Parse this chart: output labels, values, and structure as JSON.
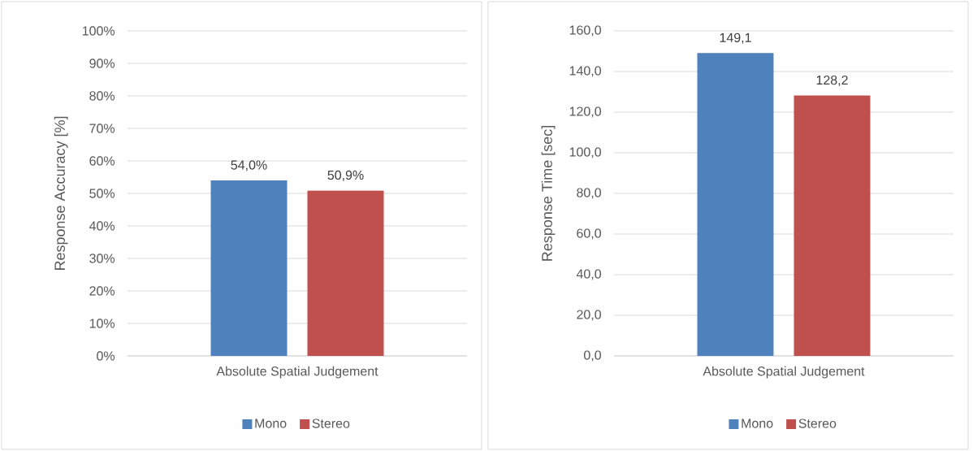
{
  "chart_data": [
    {
      "type": "bar",
      "categories": [
        "Absolute Spatial Judgement"
      ],
      "ylabel": "Response Accuracy [%]",
      "series": [
        {
          "name": "Mono",
          "color": "#4f81bd",
          "values": [
            54.0
          ],
          "value_labels": [
            "54,0%"
          ]
        },
        {
          "name": "Stereo",
          "color": "#c0504d",
          "values": [
            50.9
          ],
          "value_labels": [
            "50,9%"
          ]
        }
      ],
      "ylim": [
        0,
        100
      ],
      "yticks": [
        {
          "value": 0,
          "label": "0%"
        },
        {
          "value": 10,
          "label": "10%"
        },
        {
          "value": 20,
          "label": "20%"
        },
        {
          "value": 30,
          "label": "30%"
        },
        {
          "value": 40,
          "label": "40%"
        },
        {
          "value": 50,
          "label": "50%"
        },
        {
          "value": 60,
          "label": "60%"
        },
        {
          "value": 70,
          "label": "70%"
        },
        {
          "value": 80,
          "label": "80%"
        },
        {
          "value": 90,
          "label": "90%"
        },
        {
          "value": 100,
          "label": "100%"
        }
      ],
      "grid": "y",
      "legend": "bottom"
    },
    {
      "type": "bar",
      "categories": [
        "Absolute Spatial Judgement"
      ],
      "ylabel": "Response Time [sec]",
      "series": [
        {
          "name": "Mono",
          "color": "#4f81bd",
          "values": [
            149.1
          ],
          "value_labels": [
            "149,1"
          ]
        },
        {
          "name": "Stereo",
          "color": "#c0504d",
          "values": [
            128.2
          ],
          "value_labels": [
            "128,2"
          ]
        }
      ],
      "ylim": [
        0,
        160
      ],
      "yticks": [
        {
          "value": 0,
          "label": "0,0"
        },
        {
          "value": 20,
          "label": "20,0"
        },
        {
          "value": 40,
          "label": "40,0"
        },
        {
          "value": 60,
          "label": "60,0"
        },
        {
          "value": 80,
          "label": "80,0"
        },
        {
          "value": 100,
          "label": "100,0"
        },
        {
          "value": 120,
          "label": "120,0"
        },
        {
          "value": 140,
          "label": "140,0"
        },
        {
          "value": 160,
          "label": "160,0"
        }
      ],
      "grid": "y",
      "legend": "bottom"
    }
  ]
}
